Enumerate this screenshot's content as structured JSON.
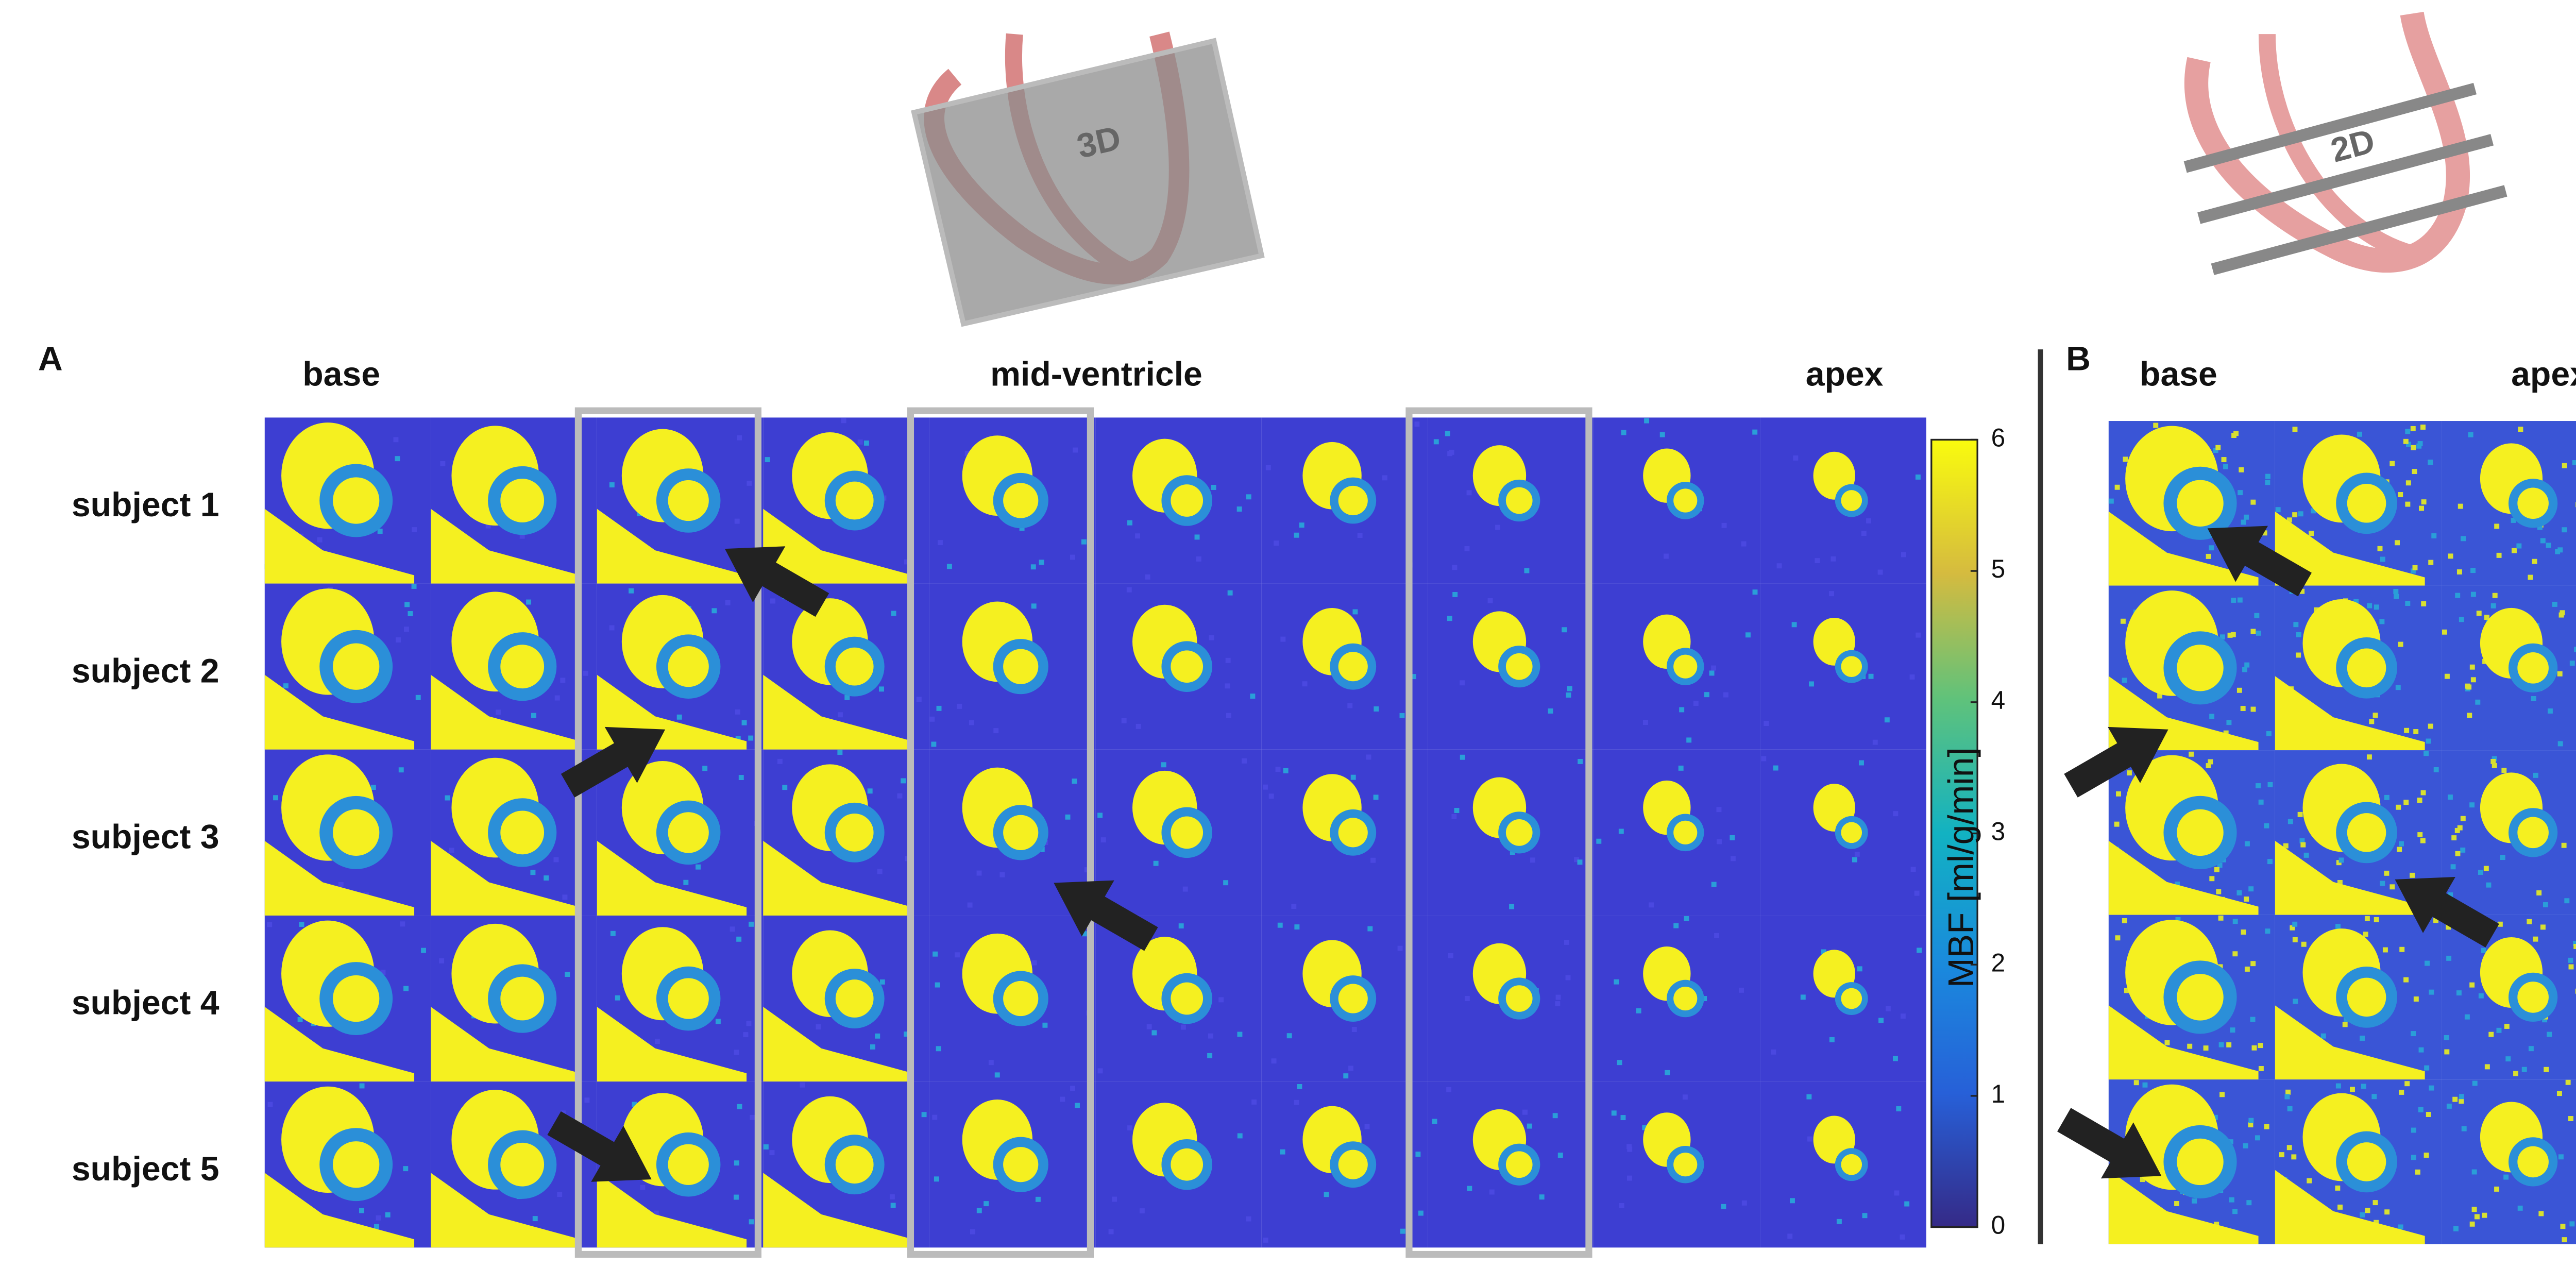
{
  "panel_a": {
    "label": "A",
    "columns": {
      "left": "base",
      "middle": "mid-ventricle",
      "right": "apex"
    },
    "rows": [
      "subject 1",
      "subject 2",
      "subject 3",
      "subject 4",
      "subject 5"
    ]
  },
  "panel_b": {
    "label": "B",
    "columns": {
      "left": "base",
      "right": "apex"
    }
  },
  "schematics": {
    "left": "3D",
    "right": "2D"
  },
  "colorbar": {
    "label": "MBF [ml/g/min]",
    "lim": [
      0,
      6
    ],
    "ticks": [
      0,
      1,
      2,
      3,
      4,
      5,
      6
    ]
  }
}
